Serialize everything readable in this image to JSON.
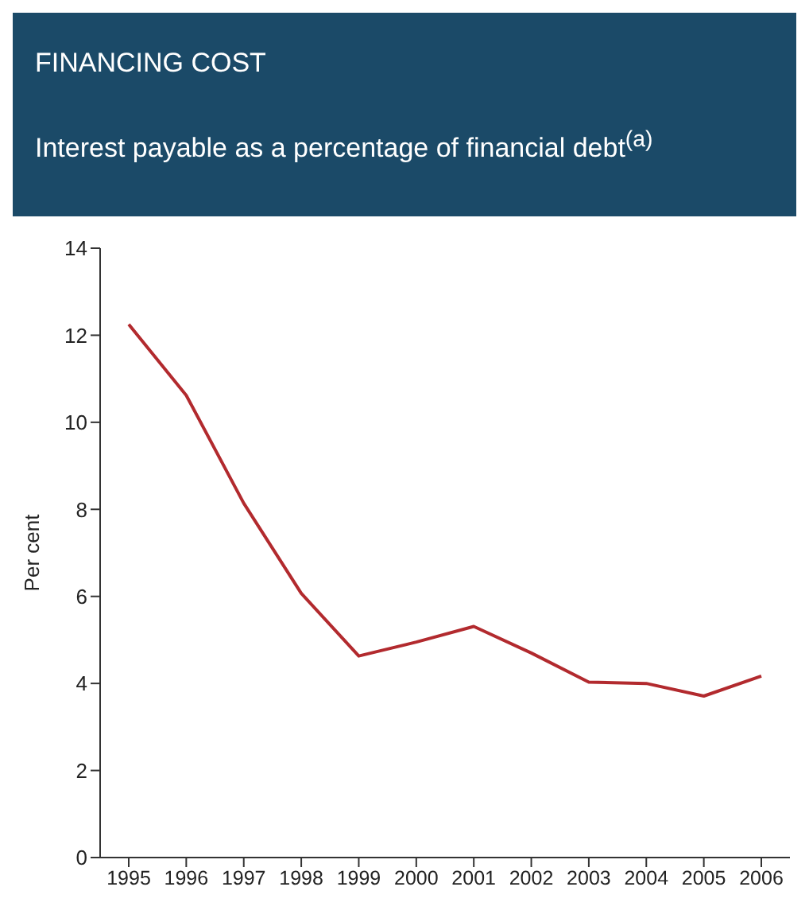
{
  "chart_data": {
    "type": "line",
    "title": "FINANCING COST",
    "subtitle": "Interest payable as a percentage of financial debt$^{(a)}$",
    "ylabel": "Per cent",
    "categories": [
      "1995",
      "1996",
      "1997",
      "1998",
      "1999",
      "2000",
      "2001",
      "2002",
      "2003",
      "2004",
      "2005",
      "2006"
    ],
    "series": [
      {
        "color": "#b22a2e",
        "values": [
          12.25,
          10.62,
          8.14,
          6.07,
          4.63,
          4.95,
          5.31,
          4.7,
          4.03,
          4.0,
          3.71,
          4.17
        ]
      }
    ],
    "ylim": [
      0,
      14
    ],
    "yticks": [
      0,
      2,
      4,
      6,
      8,
      10,
      12,
      14
    ],
    "grid": false,
    "legend": false,
    "marker": "none",
    "line_style": "solid"
  }
}
